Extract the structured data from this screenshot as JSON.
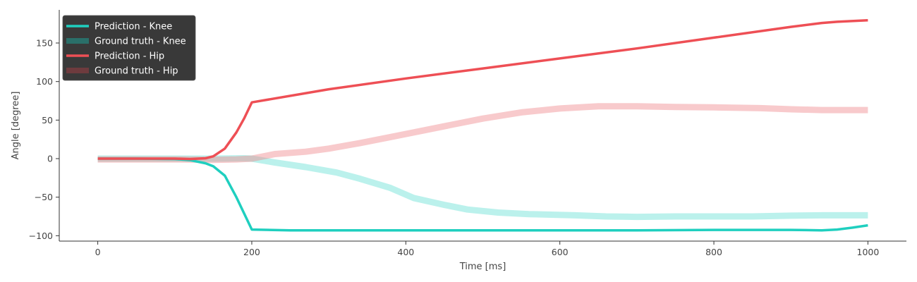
{
  "chart_data": {
    "type": "line",
    "xlabel": "Time [ms]",
    "ylabel": "Angle [degree]",
    "xlim": [
      -50,
      1050
    ],
    "ylim": [
      -107,
      193
    ],
    "xticks": [
      0,
      200,
      400,
      600,
      800,
      1000
    ],
    "yticks": [
      -100,
      -50,
      0,
      50,
      100,
      150
    ],
    "tick_labels": {
      "x": [
        "0",
        "200",
        "400",
        "600",
        "800",
        "1000"
      ],
      "y": [
        "−100",
        "−50",
        "0",
        "50",
        "100",
        "150"
      ]
    },
    "grid": false,
    "legend_placement": "top-left",
    "series": [
      {
        "name": "Prediction - Knee",
        "color": "#1fcfbf",
        "style": "prediction",
        "x": [
          0,
          50,
          100,
          120,
          140,
          150,
          165,
          180,
          200,
          250,
          300,
          400,
          500,
          600,
          700,
          800,
          900,
          940,
          960,
          980,
          1000
        ],
        "y": [
          0,
          0,
          -0.5,
          -2,
          -6,
          -10,
          -22,
          -50,
          -92,
          -93,
          -93,
          -93,
          -93,
          -93,
          -93,
          -92.5,
          -92.5,
          -93,
          -92,
          -89.5,
          -86.5
        ]
      },
      {
        "name": "Ground truth - Knee",
        "color": "#1fcfbf",
        "style": "ground-truth",
        "x": [
          0,
          100,
          150,
          190,
          200,
          230,
          270,
          310,
          340,
          380,
          410,
          450,
          480,
          520,
          560,
          620,
          660,
          700,
          750,
          800,
          850,
          900,
          940,
          1000
        ],
        "y": [
          0,
          0,
          0,
          0.5,
          0,
          -5,
          -11,
          -18,
          -26,
          -38,
          -51,
          -60,
          -66,
          -70,
          -72,
          -73.5,
          -75,
          -75.5,
          -75,
          -75,
          -75,
          -74,
          -73.5,
          -73.5
        ]
      },
      {
        "name": "Prediction - Hip",
        "color": "#ee4f55",
        "style": "prediction",
        "x": [
          0,
          100,
          120,
          140,
          150,
          165,
          180,
          190,
          200,
          300,
          400,
          500,
          600,
          700,
          800,
          900,
          940,
          960,
          1000
        ],
        "y": [
          0,
          0,
          -0.5,
          0.5,
          3,
          13,
          34,
          52,
          73,
          90,
          104,
          117,
          130,
          143,
          157,
          171,
          176,
          177.5,
          179.5
        ]
      },
      {
        "name": "Ground truth - Hip",
        "color": "#f08a8f",
        "style": "ground-truth",
        "x": [
          0,
          100,
          150,
          180,
          200,
          230,
          270,
          300,
          340,
          380,
          420,
          460,
          500,
          550,
          600,
          650,
          700,
          750,
          800,
          860,
          900,
          940,
          1000
        ],
        "y": [
          -1,
          -1,
          -1.5,
          -1,
          0,
          6,
          9,
          13,
          20,
          28,
          36,
          44,
          52,
          60,
          65,
          68,
          68,
          67,
          66.5,
          65.5,
          64,
          63,
          63
        ]
      }
    ]
  }
}
